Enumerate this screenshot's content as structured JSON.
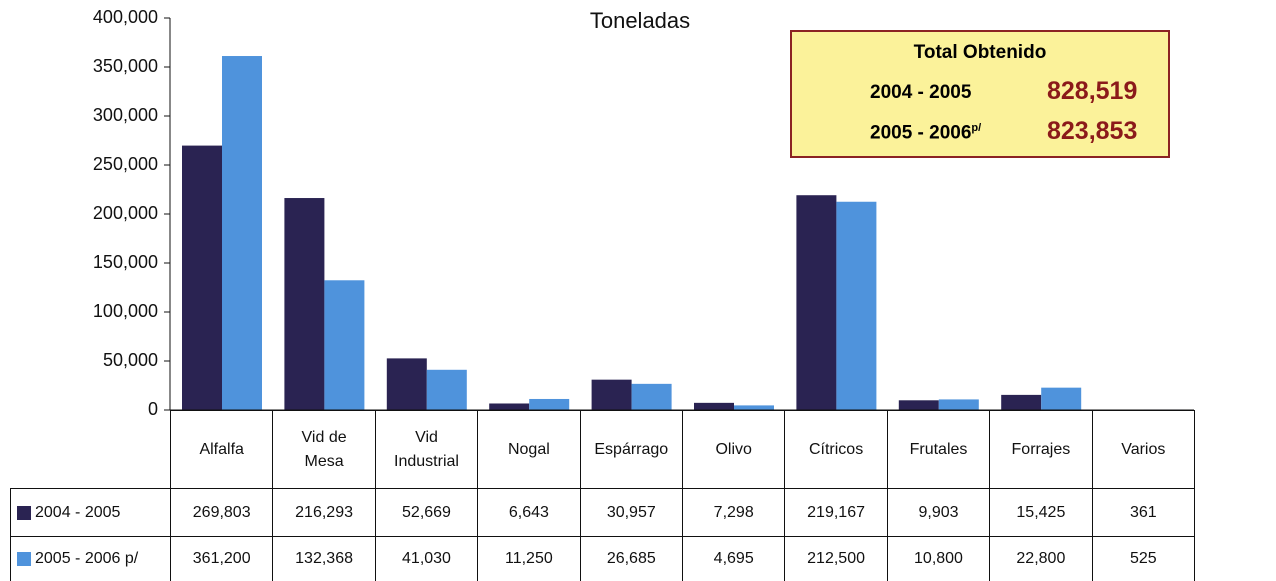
{
  "chart_data": {
    "type": "bar",
    "title": "Toneladas",
    "categories": [
      "Alfalfa",
      "Vid de\nMesa",
      "Vid\nIndustrial",
      "Nogal",
      "Espárrago",
      "Olivo",
      "Cítricos",
      "Frutales",
      "Forrajes",
      "Varios"
    ],
    "series": [
      {
        "name": "2004 - 2005",
        "color": "#2a2352",
        "values": [
          269803,
          216293,
          52669,
          6643,
          30957,
          7298,
          219167,
          9903,
          15425,
          361
        ],
        "value_labels": [
          "269,803",
          "216,293",
          "52,669",
          "6,643",
          "30,957",
          "7,298",
          "219,167",
          "9,903",
          "15,425",
          "361"
        ]
      },
      {
        "name": "2005 - 2006 p/",
        "color": "#4f93dc",
        "values": [
          361200,
          132368,
          41030,
          11250,
          26685,
          4695,
          212500,
          10800,
          22800,
          525
        ],
        "value_labels": [
          "361,200",
          "132,368",
          "41,030",
          "11,250",
          "26,685",
          "4,695",
          "212,500",
          "10,800",
          "22,800",
          "525"
        ]
      }
    ],
    "ylim": [
      0,
      400000
    ],
    "yticks": [
      0,
      {
        "value": 50000,
        "label": "50,000"
      },
      {
        "value": 100000,
        "label": "100,000"
      },
      {
        "value": 150000,
        "label": "150,000"
      },
      {
        "value": 200000,
        "label": "200,000"
      },
      {
        "value": 250000,
        "label": "250,000"
      },
      {
        "value": 300000,
        "label": "300,000"
      },
      {
        "value": 350000,
        "label": "350,000"
      },
      {
        "value": 400000,
        "label": "400,000"
      }
    ],
    "grid": false,
    "annotation": {
      "title": "Total Obtenido",
      "rows": [
        {
          "label": "2004 - 2005",
          "total": "828,519"
        },
        {
          "label": "2005 - 2006",
          "sup": "p/",
          "total": "823,853"
        }
      ]
    }
  }
}
